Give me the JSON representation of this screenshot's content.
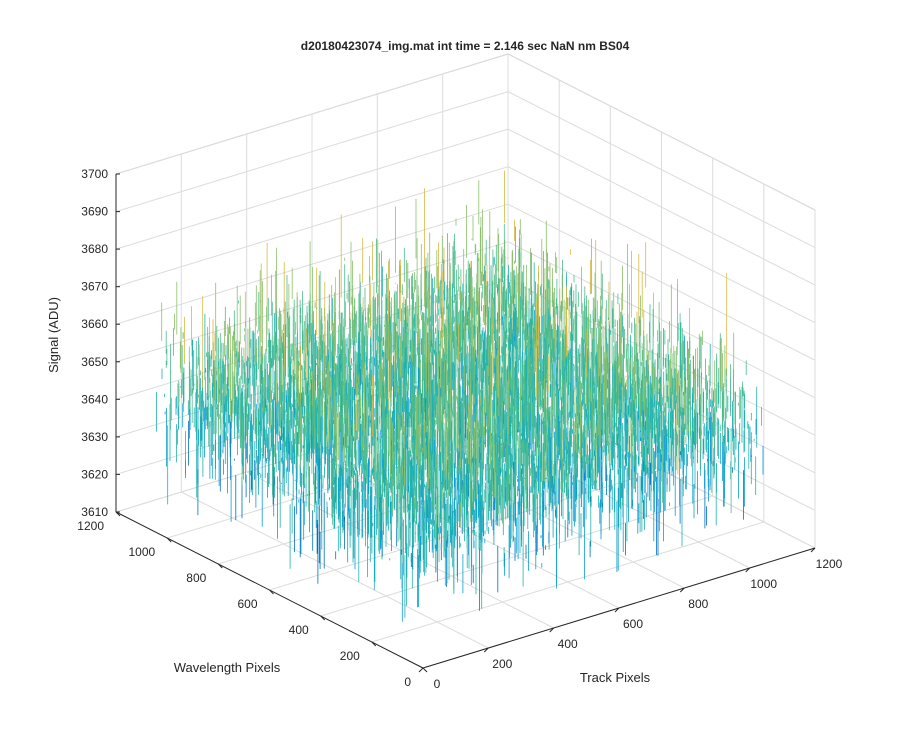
{
  "chart_data": {
    "type": "surface",
    "title": "d20180423074_img.mat int time = 2.146 sec  NaN nm BS04",
    "xlabel": "Track Pixels",
    "ylabel": "Wavelength Pixels",
    "zlabel": "Signal (ADU)",
    "xlim": [
      0,
      1200
    ],
    "ylim": [
      0,
      1200
    ],
    "zlim": [
      3610,
      3700
    ],
    "xticks": [
      "0",
      "200",
      "400",
      "600",
      "800",
      "1000",
      "1200"
    ],
    "yticks": [
      "0",
      "200",
      "400",
      "600",
      "800",
      "1000",
      "1200"
    ],
    "zticks": [
      "3610",
      "3620",
      "3630",
      "3640",
      "3650",
      "3660",
      "3670",
      "3680",
      "3690",
      "3700"
    ],
    "data_extent": {
      "x": [
        0,
        1030
      ],
      "y": [
        0,
        1030
      ]
    },
    "signal_mean": 3648,
    "signal_range": [
      3618,
      3690
    ],
    "grid": true,
    "colormap": [
      "#0072bd",
      "#0a9fd0",
      "#21b2b0",
      "#4cbc8e",
      "#8cc06e",
      "#d9b840"
    ]
  }
}
